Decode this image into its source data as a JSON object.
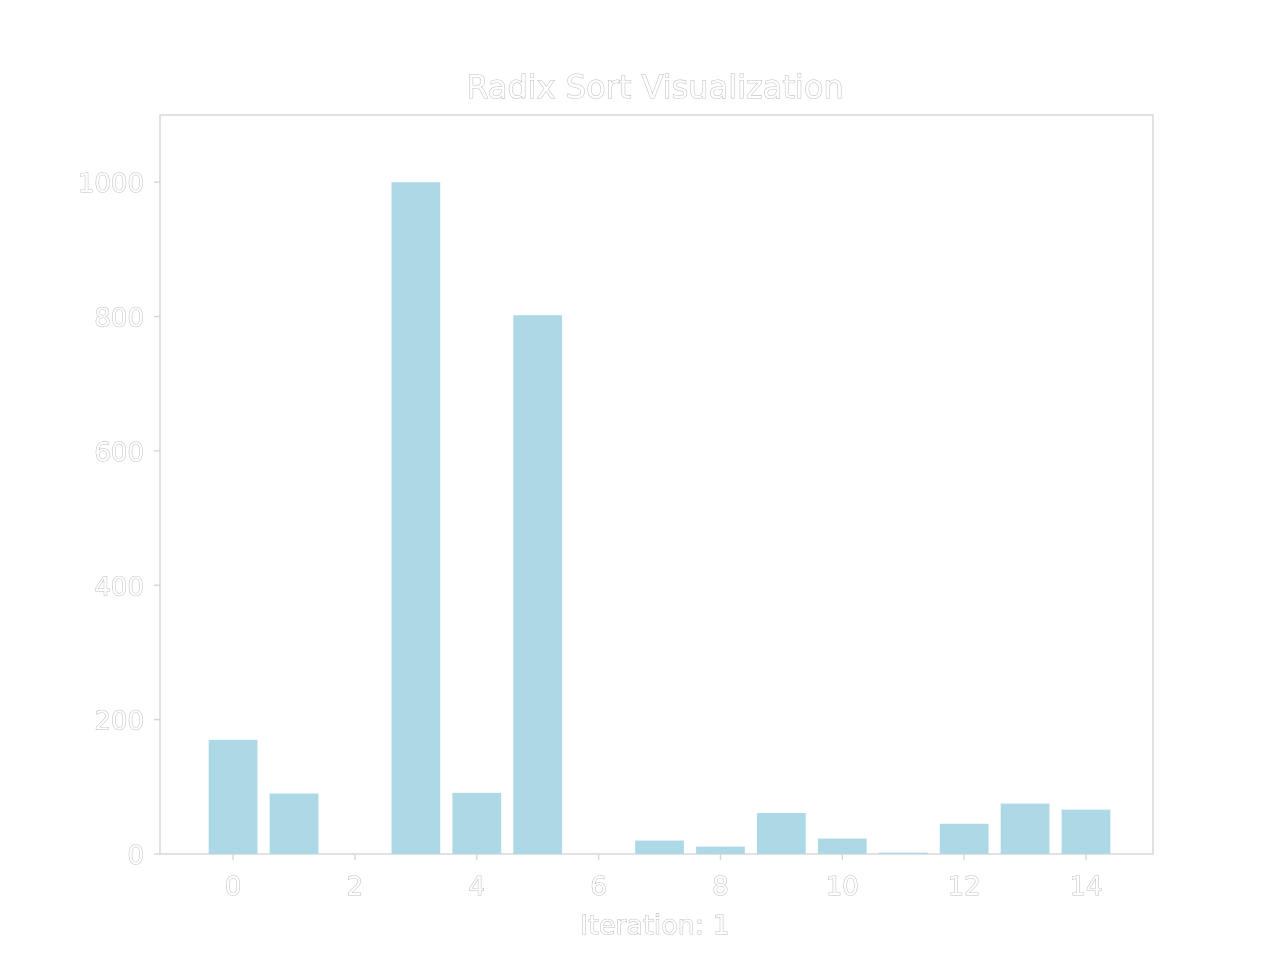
{
  "chart_data": {
    "type": "bar",
    "title": "Radix Sort Visualization",
    "xlabel": "Iteration: 1",
    "ylabel": "",
    "x": [
      0,
      1,
      2,
      3,
      4,
      5,
      6,
      7,
      8,
      9,
      10,
      11,
      12,
      13,
      14
    ],
    "values": [
      170,
      90,
      0,
      1000,
      91,
      802,
      0,
      20,
      11,
      61,
      23,
      2,
      45,
      75,
      66
    ],
    "xlim": [
      -1.2,
      15.1
    ],
    "ylim": [
      0,
      1100
    ],
    "xticks": [
      0,
      2,
      4,
      6,
      8,
      10,
      12,
      14
    ],
    "yticks": [
      0,
      200,
      400,
      600,
      800,
      1000
    ],
    "xtick_labels": [
      "0",
      "2",
      "4",
      "6",
      "8",
      "10",
      "12",
      "14"
    ],
    "ytick_labels": [
      "0",
      "200",
      "400",
      "600",
      "800",
      "1000"
    ],
    "bar_color": "#add8e6",
    "grid": false,
    "legend": "none"
  }
}
